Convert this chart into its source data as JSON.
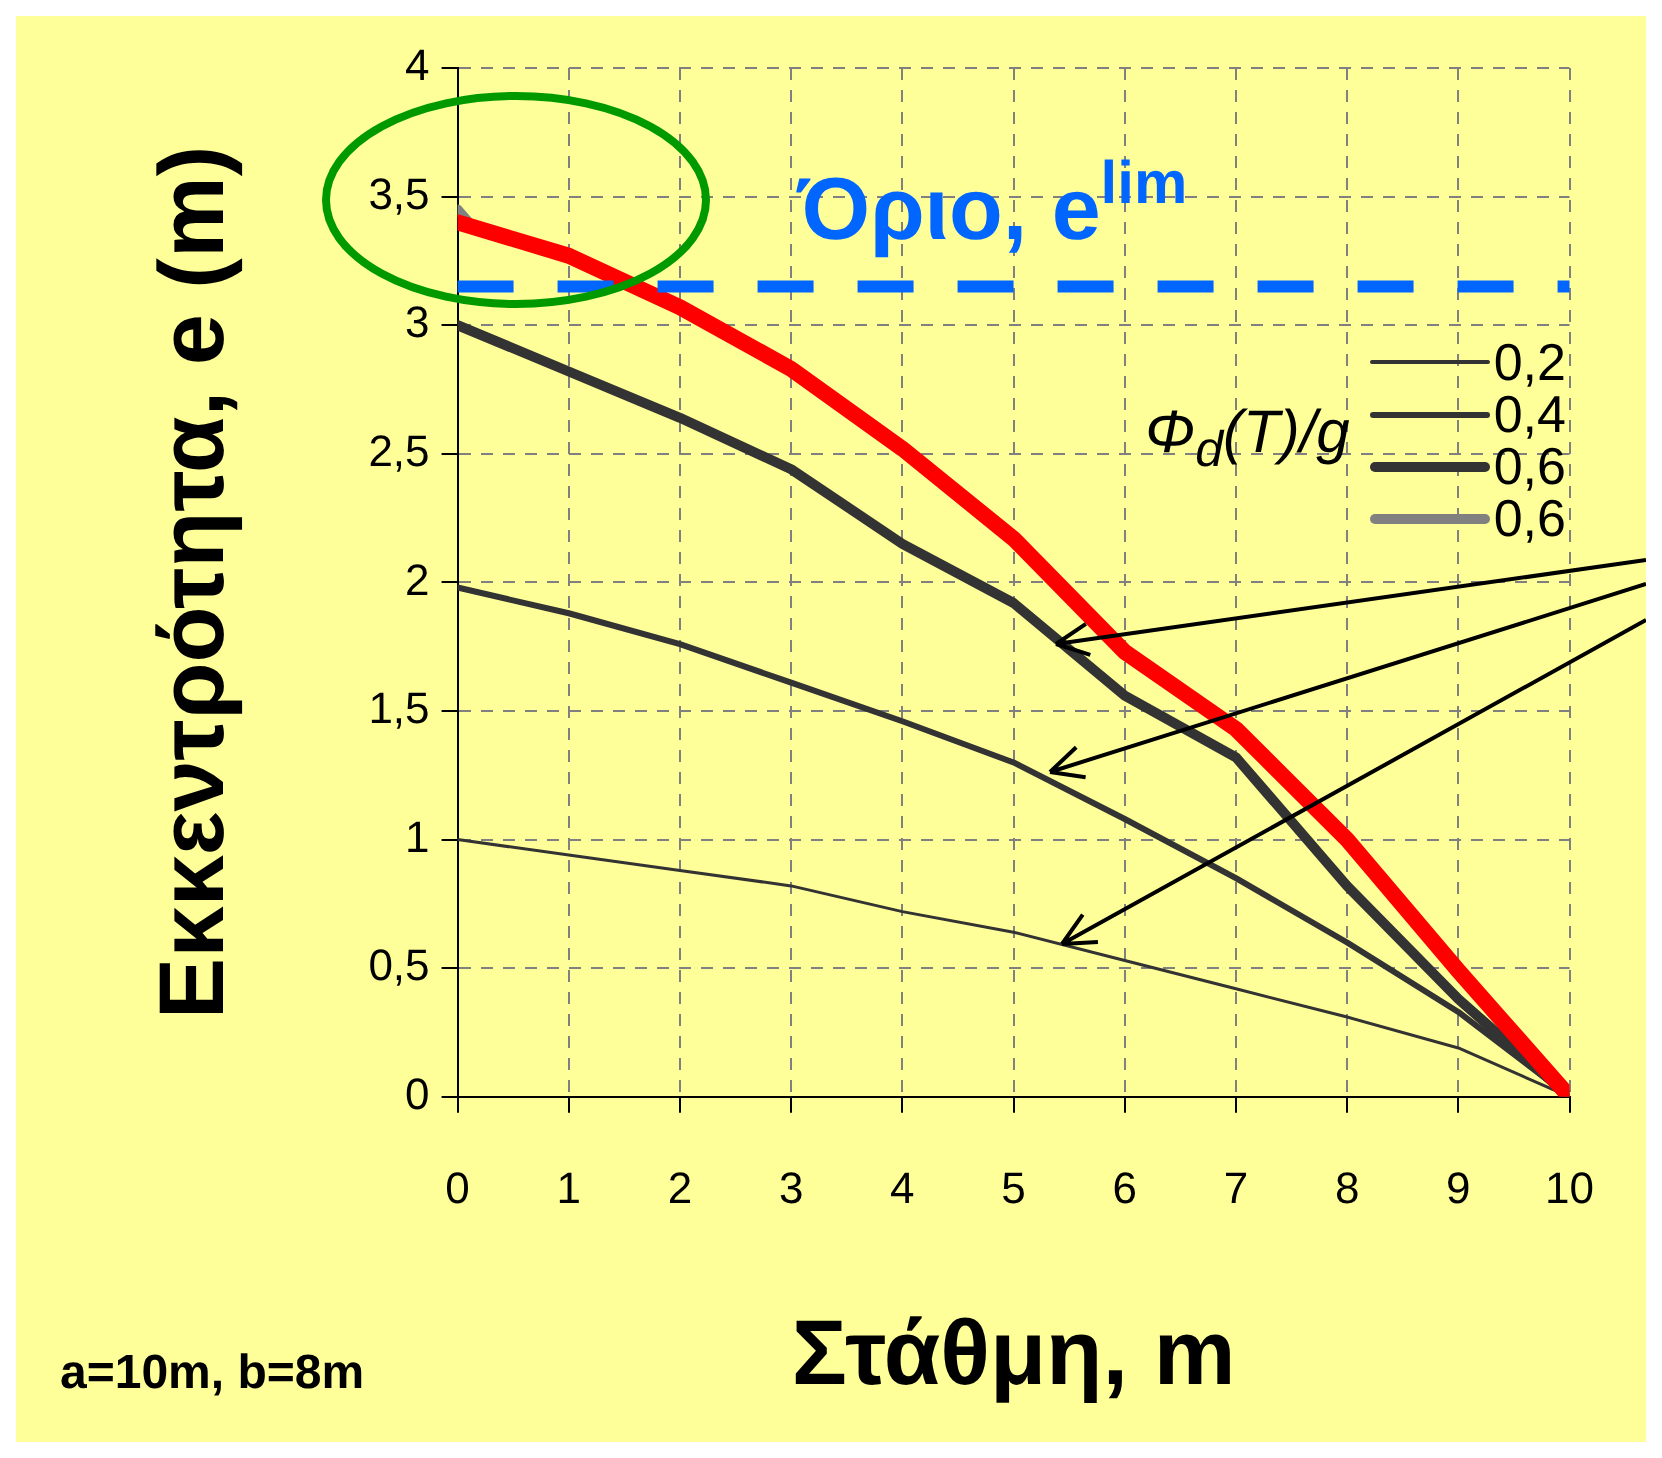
{
  "chart_data": {
    "type": "line",
    "xlabel": "Στάθμη, m",
    "ylabel": "Εκκεντρότητα, e (m)",
    "legend_title": "Φ$_{d}$(T)/g",
    "x": [
      0,
      1,
      2,
      3,
      4,
      5,
      6,
      7,
      8,
      9,
      10
    ],
    "series": [
      {
        "name": "0,2",
        "color": "#333333",
        "values": [
          1.0,
          0.94,
          0.88,
          0.82,
          0.72,
          0.64,
          0.53,
          0.42,
          0.31,
          0.19,
          0
        ]
      },
      {
        "name": "0,4",
        "color": "#333333",
        "values": [
          1.98,
          1.88,
          1.76,
          1.61,
          1.46,
          1.3,
          1.08,
          0.85,
          0.6,
          0.33,
          0
        ]
      },
      {
        "name": "0,6",
        "color": "#333333",
        "values": [
          3.0,
          2.82,
          2.64,
          2.44,
          2.15,
          1.92,
          1.56,
          1.32,
          0.82,
          0.38,
          0
        ]
      },
      {
        "name": "0,6",
        "color": "#808080",
        "x": [
          0,
          0.1
        ],
        "values": [
          3.45,
          3.4
        ]
      },
      {
        "color": "#ff0000",
        "values": [
          3.4,
          3.27,
          3.07,
          2.83,
          2.52,
          2.17,
          1.73,
          1.43,
          1.0,
          0.49,
          0
        ]
      }
    ],
    "xlim": [
      0,
      10
    ],
    "xticks": [
      0,
      1,
      2,
      3,
      4,
      5,
      6,
      7,
      8,
      9,
      10
    ],
    "ylim": [
      0,
      4
    ],
    "yticks": [
      0,
      {
        "value": 0.5,
        "label": "0,5"
      },
      1,
      {
        "value": 1.5,
        "label": "1,5"
      },
      2,
      {
        "value": 2.5,
        "label": "2,5"
      },
      3,
      {
        "value": 3.5,
        "label": "3,5"
      },
      4
    ],
    "ref_lines": [
      {
        "axis": "y",
        "value": 3.15,
        "label": "Όριο, e$^{lim}$",
        "color": "#0066ff",
        "line_style": "dashed"
      }
    ],
    "annotations": [
      "a=10m, b=8m"
    ],
    "grid": true,
    "legend": "top right",
    "marker": "none",
    "line_style": "solid"
  }
}
